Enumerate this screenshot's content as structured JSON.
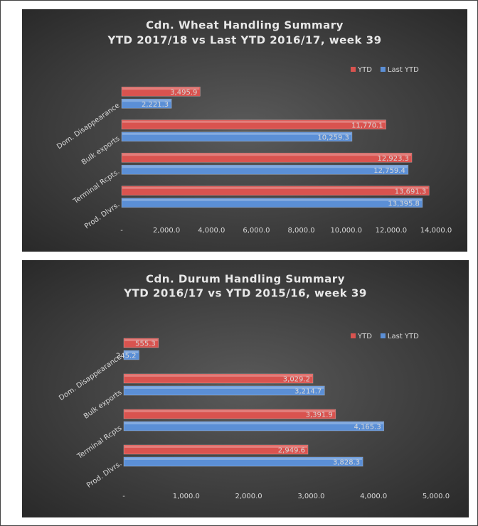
{
  "chart_data": [
    {
      "type": "bar",
      "orientation": "horizontal",
      "title": "Cdn. Wheat Handling Summary",
      "subtitle": "YTD 2017/18 vs Last YTD 2016/17, week 39",
      "categories": [
        "Dom. Disappearance",
        "Bulk exports",
        "Terminal Rcpts.",
        "Prod. Dlvrs."
      ],
      "series": [
        {
          "name": "YTD",
          "color": "#d9534f",
          "values": [
            3495.9,
            11770.1,
            12923.3,
            13691.3
          ],
          "value_labels": [
            "3,495.9",
            "11,770.1",
            "12,923.3",
            "13,691.3"
          ]
        },
        {
          "name": "Last YTD",
          "color": "#5b8fd6",
          "values": [
            2221.3,
            10259.3,
            12759.4,
            13395.8
          ],
          "value_labels": [
            "2,221.3",
            "10,259.3",
            "12,759.4",
            "13,395.8"
          ]
        }
      ],
      "xlim": [
        0,
        14000
      ],
      "xticks": [
        {
          "value": 0,
          "label": "-"
        },
        {
          "value": 2000,
          "label": "2,000.0"
        },
        {
          "value": 4000,
          "label": "4,000.0"
        },
        {
          "value": 6000,
          "label": "6,000.0"
        },
        {
          "value": 8000,
          "label": "8,000.0"
        },
        {
          "value": 10000,
          "label": "10,000.0"
        },
        {
          "value": 12000,
          "label": "12,000.0"
        },
        {
          "value": 14000,
          "label": "14,000.0"
        }
      ],
      "grid": false,
      "legend": "top-right"
    },
    {
      "type": "bar",
      "orientation": "horizontal",
      "title": "Cdn. Durum Handling Summary",
      "subtitle": "YTD 2016/17 vs YTD 2015/16, week 39",
      "categories": [
        "Dom. Disappearance",
        "Bulk exports",
        "Terminal Rcpts",
        "Prod. Dlvrs."
      ],
      "series": [
        {
          "name": "YTD",
          "color": "#d9534f",
          "values": [
            555.3,
            3029.2,
            3391.9,
            2949.6
          ],
          "value_labels": [
            "555.3",
            "3,029.2",
            "3,391.9",
            "2,949.6"
          ]
        },
        {
          "name": "Last YTD",
          "color": "#5b8fd6",
          "values": [
            245.2,
            3214.7,
            4165.3,
            3828.3
          ],
          "value_labels": [
            "245.2",
            "3,214.7",
            "4,165.3",
            "3,828.3"
          ]
        }
      ],
      "xlim": [
        0,
        5000
      ],
      "xticks": [
        {
          "value": 0,
          "label": "-"
        },
        {
          "value": 1000,
          "label": "1,000.0"
        },
        {
          "value": 2000,
          "label": "2,000.0"
        },
        {
          "value": 3000,
          "label": "3,000.0"
        },
        {
          "value": 4000,
          "label": "4,000.0"
        },
        {
          "value": 5000,
          "label": "5,000.0"
        }
      ],
      "grid": false,
      "legend": "top-right"
    }
  ]
}
